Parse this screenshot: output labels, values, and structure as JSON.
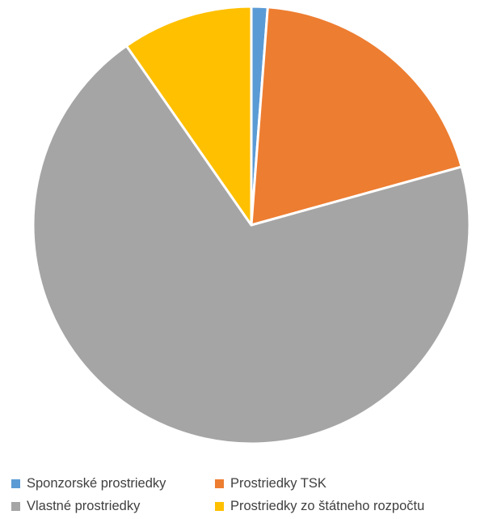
{
  "chart_data": {
    "type": "pie",
    "title": "",
    "slices": [
      {
        "name": "Sponzorské prostriedky",
        "value": 1.2,
        "color": "#5B9BD5"
      },
      {
        "name": "Prostriedky TSK",
        "value": 19.5,
        "color": "#ED7D31"
      },
      {
        "name": "Vlastné prostriedky",
        "value": 69.6,
        "color": "#A5A5A5"
      },
      {
        "name": "Prostriedky zo štátneho rozpočtu",
        "value": 9.7,
        "color": "#FFC000"
      }
    ],
    "legend_position": "bottom"
  },
  "legend": {
    "items": [
      {
        "label": "Sponzorské prostriedky",
        "color": "#5B9BD5"
      },
      {
        "label": "Prostriedky TSK",
        "color": "#ED7D31"
      },
      {
        "label": "Vlastné prostriedky",
        "color": "#A5A5A5"
      },
      {
        "label": "Prostriedky zo štátneho rozpočtu",
        "color": "#FFC000"
      }
    ]
  }
}
